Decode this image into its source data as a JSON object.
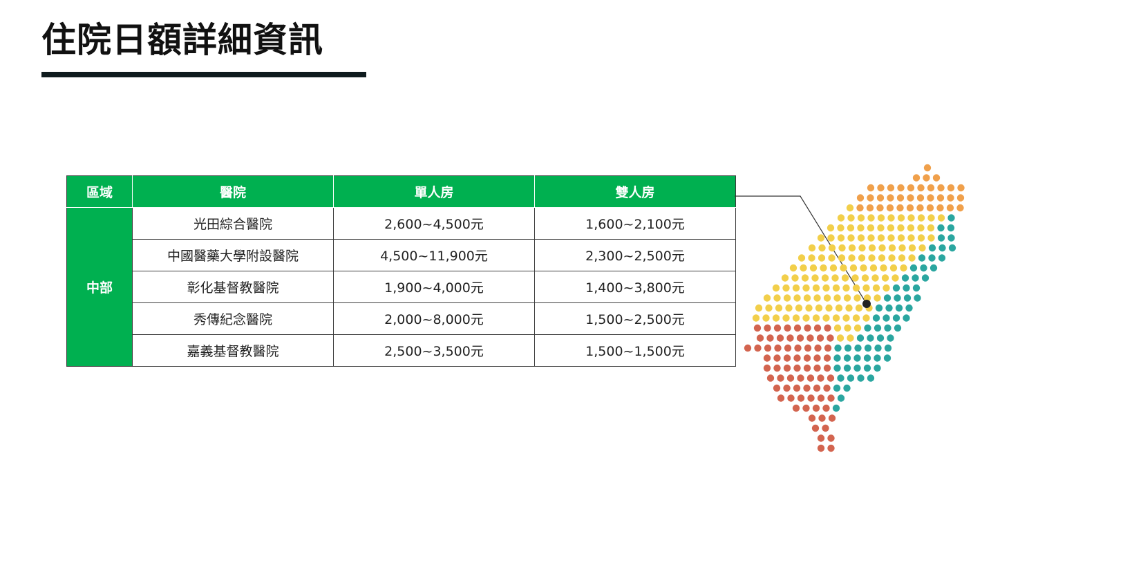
{
  "title": "住院日額詳細資訊",
  "table": {
    "headers": {
      "region": "區域",
      "hospital": "醫院",
      "single": "單人房",
      "double": "雙人房"
    },
    "region": "中部",
    "rows": [
      {
        "hospital": "光田綜合醫院",
        "single": "2,600~4,500元",
        "double": "1,600~2,100元"
      },
      {
        "hospital": "中國醫藥大學附設醫院",
        "single": "4,500~11,900元",
        "double": "2,300~2,500元"
      },
      {
        "hospital": "彰化基督教醫院",
        "single": "1,900~4,000元",
        "double": "1,400~3,800元"
      },
      {
        "hospital": "秀傳紀念醫院",
        "single": "2,000~8,000元",
        "double": "1,500~2,500元"
      },
      {
        "hospital": "嘉義基督教醫院",
        "single": "2,500~3,500元",
        "double": "1,500~1,500元"
      }
    ]
  },
  "colors": {
    "header_green": "#00b050",
    "north_orange": "#f0a04b",
    "central_yellow": "#f2cf4a",
    "east_teal": "#2aa6a0",
    "south_red": "#d3644f",
    "marker": "#222222"
  }
}
